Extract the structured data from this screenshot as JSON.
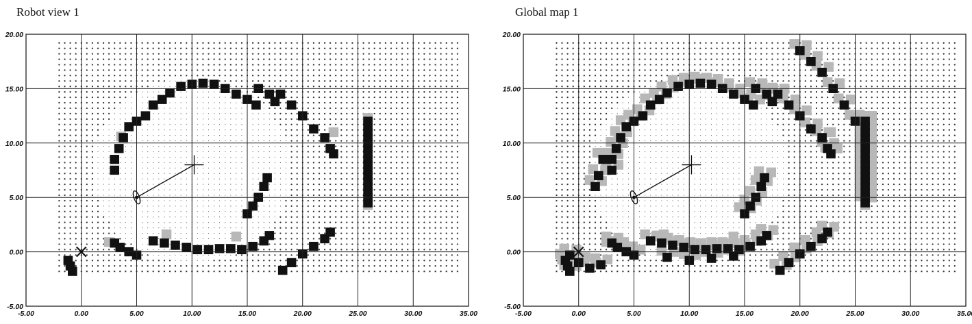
{
  "panels": [
    {
      "title": "Robot view 1"
    },
    {
      "title": "Global map 1"
    }
  ],
  "axes": {
    "x_ticks": [
      "-5.00",
      "0.00",
      "5.00",
      "10.00",
      "15.00",
      "20.00",
      "25.00",
      "30.00",
      "35.00"
    ],
    "y_ticks": [
      "20.00",
      "15.00",
      "10.00",
      "5.00",
      "0.00",
      "-5.00"
    ],
    "xlim": [
      -5,
      35
    ],
    "ylim": [
      -5,
      20
    ],
    "grid": true
  },
  "markers": {
    "origin_cross": {
      "x": 0,
      "y": 0,
      "symbol": "x-mark"
    },
    "robot": {
      "x": 5,
      "y": 5,
      "symbol": "robot-ellipse"
    },
    "target": {
      "x": 10.2,
      "y": 8,
      "symbol": "plus-mark"
    }
  },
  "colors": {
    "occupied": "#111111",
    "uncertain": "#b8b8b8",
    "grid_line": "#222222",
    "unknown_dot": "#333333"
  }
}
